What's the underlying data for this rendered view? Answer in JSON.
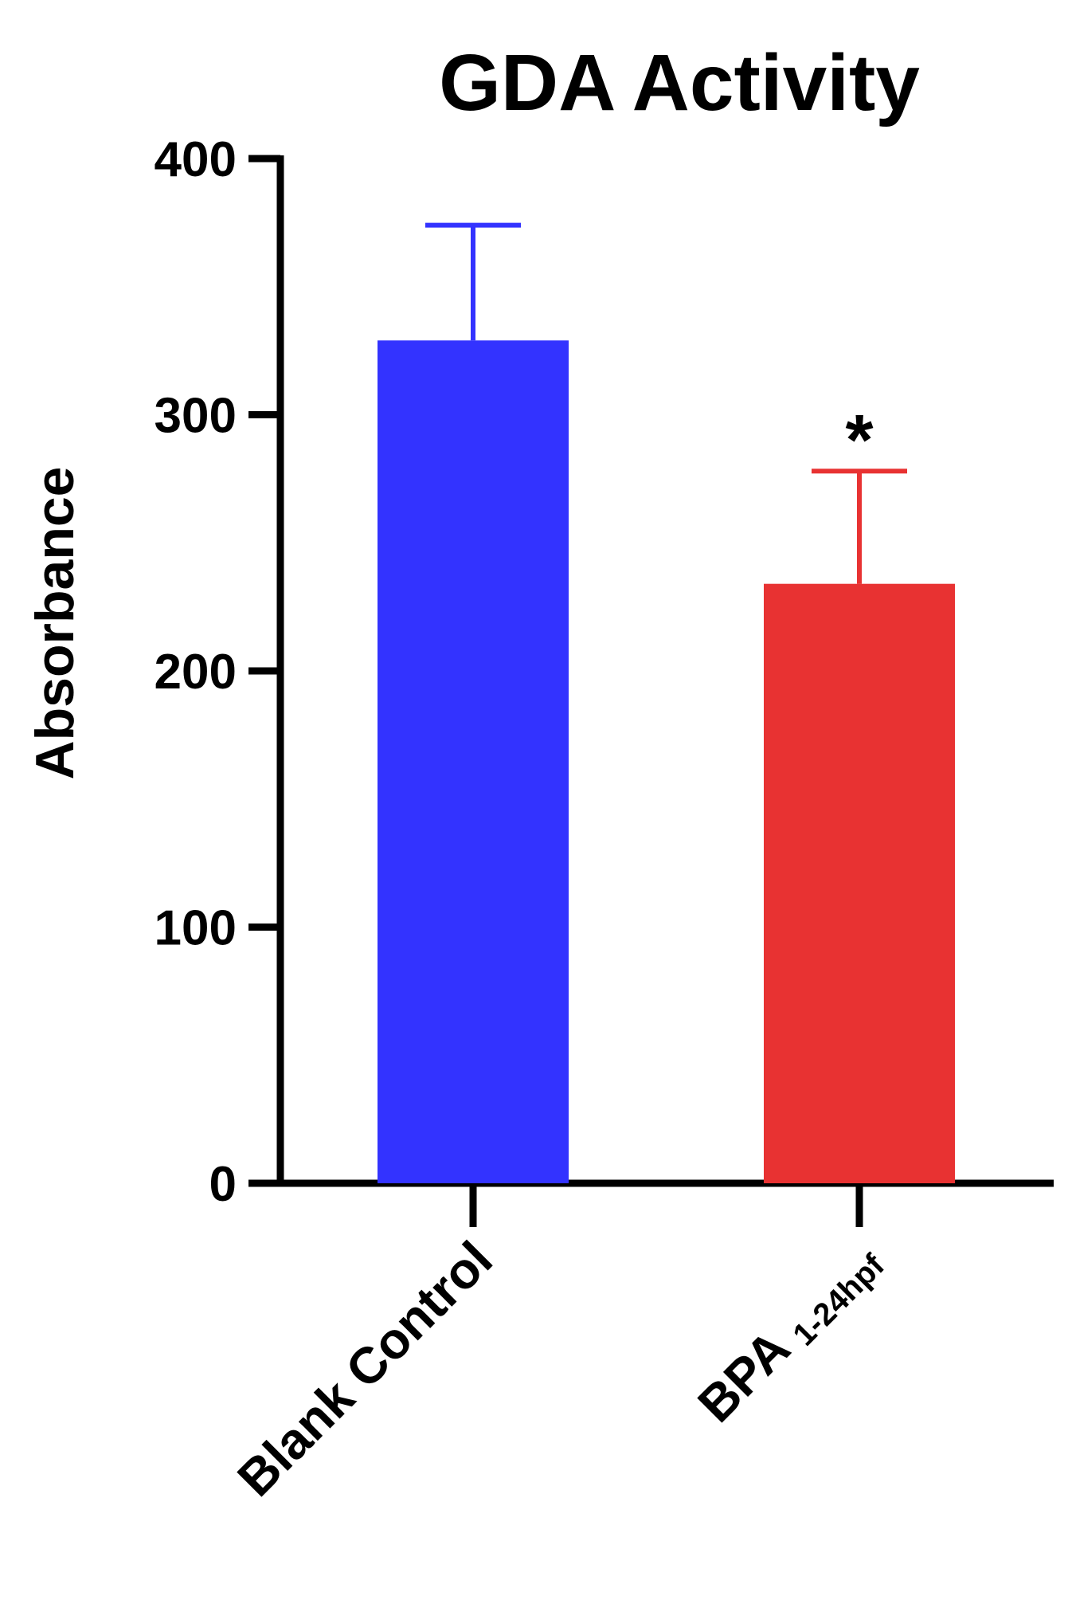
{
  "chart_data": {
    "type": "bar",
    "title": "GDA Activity",
    "y_label": "Absorbance",
    "categories": [
      "Blank Control",
      "BPA"
    ],
    "category_subscripts": {
      "1": "1-24hpf"
    },
    "series": [
      {
        "name": "GDA",
        "values": [
          329,
          234
        ],
        "errors": [
          45,
          44
        ],
        "colors": [
          "#3333ff",
          "#e83232"
        ]
      }
    ],
    "annotations": [
      {
        "category": 1,
        "text": "*"
      }
    ],
    "ylim": [
      0,
      400
    ],
    "yticks": [
      0,
      100,
      200,
      300,
      400
    ],
    "grid": false
  }
}
